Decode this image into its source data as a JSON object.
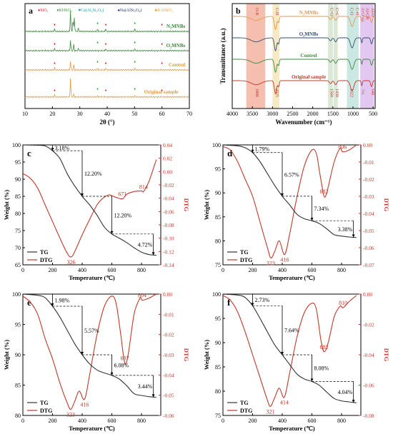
{
  "chart_data": [
    {
      "panel": "a",
      "type": "line",
      "xlabel": "2θ (°)",
      "ylabel": "",
      "xlim": [
        10,
        70
      ],
      "xticks": [
        10,
        20,
        30,
        40,
        50,
        60,
        70
      ],
      "legend": [
        {
          "symbol": "♦",
          "label": "SiO₂",
          "color": "#d62728"
        },
        {
          "symbol": "♦",
          "label": "KHSO₄",
          "color": "#2ca02c"
        },
        {
          "symbol": "♥",
          "label": "Ca(Al₂Si₂O₈)",
          "color": "#17a2b8"
        },
        {
          "symbol": "♠",
          "label": "Na(AlSi₃O₈)",
          "color": "#1f3b73"
        },
        {
          "symbol": "♣",
          "label": "KAlSiO₄",
          "color": "#e8a33d"
        }
      ],
      "series": [
        {
          "name": "N₂MNBs",
          "color": "#3c8a3c",
          "baseline": 4,
          "peaks": [
            [
              20.8,
              0.25
            ],
            [
              26.6,
              2.4
            ],
            [
              27.5,
              1.4
            ],
            [
              28.0,
              1.6
            ],
            [
              29.5,
              0.4
            ],
            [
              36.5,
              0.25
            ],
            [
              39.5,
              0.35
            ],
            [
              50.1,
              0.3
            ]
          ]
        },
        {
          "name": "O₂MNBs",
          "color": "#3c8a3c",
          "baseline": 3,
          "peaks": [
            [
              20.8,
              0.2
            ],
            [
              26.6,
              1.2
            ],
            [
              27.8,
              0.7
            ],
            [
              29.5,
              0.25
            ],
            [
              39.5,
              0.25
            ],
            [
              50.1,
              0.2
            ]
          ]
        },
        {
          "name": "Control",
          "color": "#e39a48",
          "baseline": 2,
          "peaks": [
            [
              20.8,
              0.2
            ],
            [
              26.6,
              1.0
            ],
            [
              27.8,
              0.6
            ],
            [
              36.5,
              0.2
            ],
            [
              39.5,
              0.25
            ],
            [
              50.1,
              0.2
            ]
          ]
        },
        {
          "name": "Original sample",
          "color": "#e39a48",
          "baseline": 0.6,
          "peaks": [
            [
              20.8,
              0.2
            ],
            [
              26.6,
              2.2
            ],
            [
              27.8,
              0.3
            ],
            [
              36.5,
              0.15
            ],
            [
              50.1,
              0.15
            ]
          ]
        }
      ]
    },
    {
      "panel": "b",
      "type": "line",
      "xlabel": "Wavenumber (cm⁻¹)",
      "ylabel": "Transmittance (a.u.)",
      "xlim": [
        4000,
        450
      ],
      "xticks": [
        4000,
        3500,
        3000,
        2500,
        2000,
        1500,
        1000,
        500
      ],
      "bands": [
        {
          "label": "O-H",
          "value": "3406",
          "from": 3650,
          "to": 3180,
          "color": "#f3a894"
        },
        {
          "label": "C-H",
          "value": "2925",
          "from": 3000,
          "to": 2830,
          "color": "#f4e2b0"
        },
        {
          "label": "C=O",
          "value": "1560",
          "from": 1620,
          "to": 1500,
          "color": "#cfe0c8"
        },
        {
          "label": "C=C",
          "value": "1430",
          "from": 1480,
          "to": 1380,
          "color": "#cfe0c8"
        },
        {
          "label": "C-O",
          "value": "1022",
          "from": 1150,
          "to": 980,
          "color": "#b9dfd8"
        },
        {
          "label": "C-H",
          "value": "",
          "from": 980,
          "to": 860,
          "color": "#b9dfd8"
        },
        {
          "label": "Si-O-Al",
          "value": "781",
          "from": 820,
          "to": 740,
          "color": "#d8b4ec"
        },
        {
          "label": "Al-OH",
          "value": "",
          "from": 740,
          "to": 600,
          "color": "#d8b4ec"
        },
        {
          "label": "Al-O",
          "value": "540",
          "from": 600,
          "to": 480,
          "color": "#d8b4ec"
        }
      ],
      "series": [
        {
          "name": "N₂MNBs",
          "color": "#e39a48",
          "baseline": 4
        },
        {
          "name": "O₂MNBs",
          "color": "#2f4f6f",
          "baseline": 3
        },
        {
          "name": "Control",
          "color": "#3c8a3c",
          "baseline": 2
        },
        {
          "name": "Original sample",
          "color": "#c0392b",
          "baseline": 1
        }
      ]
    },
    {
      "panel": "c",
      "type": "line",
      "xlabel": "Temperature (℃)",
      "ylabel": "Weight (%)",
      "y2label": "DTG",
      "xlim": [
        0,
        930
      ],
      "xticks": [
        0,
        200,
        400,
        600,
        800
      ],
      "ylim": [
        65,
        100
      ],
      "yticks": [
        65,
        70,
        75,
        80,
        85,
        90,
        95,
        100
      ],
      "y2lim": [
        -0.14,
        0.04
      ],
      "y2ticks": [
        0.04,
        0.02,
        0.0,
        -0.02,
        -0.04,
        -0.06,
        -0.08,
        -0.1,
        -0.12,
        -0.14
      ],
      "tg": [
        [
          0,
          100
        ],
        [
          100,
          99.9
        ],
        [
          150,
          99.7
        ],
        [
          200,
          98.3
        ],
        [
          250,
          96.0
        ],
        [
          300,
          91.5
        ],
        [
          350,
          88.0
        ],
        [
          400,
          85.0
        ],
        [
          450,
          82.5
        ],
        [
          500,
          79.5
        ],
        [
          550,
          76.0
        ],
        [
          600,
          74.0
        ],
        [
          650,
          72.8
        ],
        [
          700,
          71.5
        ],
        [
          750,
          70.0
        ],
        [
          800,
          68.7
        ],
        [
          850,
          68.0
        ],
        [
          900,
          67.8
        ]
      ],
      "dtg": [
        [
          0,
          -0.003
        ],
        [
          50,
          -0.01
        ],
        [
          100,
          -0.025
        ],
        [
          150,
          -0.05
        ],
        [
          200,
          -0.075
        ],
        [
          250,
          -0.1
        ],
        [
          300,
          -0.123
        ],
        [
          326,
          -0.128
        ],
        [
          350,
          -0.12
        ],
        [
          400,
          -0.095
        ],
        [
          450,
          -0.072
        ],
        [
          500,
          -0.05
        ],
        [
          540,
          -0.04
        ],
        [
          580,
          -0.035
        ],
        [
          620,
          -0.038
        ],
        [
          671,
          -0.041
        ],
        [
          700,
          -0.034
        ],
        [
          750,
          -0.03
        ],
        [
          800,
          -0.029
        ],
        [
          814,
          -0.03
        ],
        [
          850,
          -0.015
        ],
        [
          900,
          0.018
        ]
      ],
      "steps": [
        "3.18%",
        "12.20%",
        "12.20%",
        "4.72%"
      ],
      "peaks": [
        "326",
        "671",
        "814"
      ],
      "legend": [
        "TG",
        "DTG"
      ]
    },
    {
      "panel": "d",
      "type": "line",
      "xlabel": "Temperature (℃)",
      "ylabel": "Weight (%)",
      "y2label": "DTG",
      "xlim": [
        0,
        930
      ],
      "xticks": [
        0,
        200,
        400,
        600,
        800
      ],
      "ylim": [
        75,
        100
      ],
      "yticks": [
        75,
        80,
        85,
        90,
        95,
        100
      ],
      "y2lim": [
        -0.07,
        0.0
      ],
      "y2ticks": [
        0.0,
        -0.01,
        -0.02,
        -0.03,
        -0.04,
        -0.05,
        -0.06,
        -0.07
      ],
      "tg": [
        [
          0,
          100
        ],
        [
          100,
          99.8
        ],
        [
          150,
          99.4
        ],
        [
          200,
          98.4
        ],
        [
          250,
          96.5
        ],
        [
          300,
          94.0
        ],
        [
          350,
          91.5
        ],
        [
          400,
          89.3
        ],
        [
          450,
          87.5
        ],
        [
          500,
          85.5
        ],
        [
          550,
          84.6
        ],
        [
          600,
          84.2
        ],
        [
          650,
          83.6
        ],
        [
          700,
          82.5
        ],
        [
          750,
          81.3
        ],
        [
          800,
          81.0
        ],
        [
          850,
          80.8
        ],
        [
          900,
          80.7
        ]
      ],
      "dtg": [
        [
          0,
          -0.001
        ],
        [
          50,
          -0.003
        ],
        [
          100,
          -0.01
        ],
        [
          150,
          -0.02
        ],
        [
          200,
          -0.03
        ],
        [
          250,
          -0.045
        ],
        [
          300,
          -0.06
        ],
        [
          323,
          -0.066
        ],
        [
          350,
          -0.062
        ],
        [
          380,
          -0.056
        ],
        [
          416,
          -0.064
        ],
        [
          450,
          -0.052
        ],
        [
          500,
          -0.03
        ],
        [
          550,
          -0.012
        ],
        [
          600,
          -0.003
        ],
        [
          630,
          -0.005
        ],
        [
          650,
          -0.015
        ],
        [
          670,
          -0.025
        ],
        [
          682,
          -0.03
        ],
        [
          700,
          -0.028
        ],
        [
          750,
          -0.01
        ],
        [
          790,
          -0.002
        ],
        [
          806,
          -0.004
        ],
        [
          850,
          -0.003
        ],
        [
          900,
          0.0
        ]
      ],
      "steps": [
        "1.79%",
        "6.57%",
        "7.34%",
        "3.38%"
      ],
      "peaks": [
        "323",
        "416",
        "682",
        "806"
      ],
      "legend": [
        "TG",
        "DTG"
      ]
    },
    {
      "panel": "e",
      "type": "line",
      "xlabel": "Temperature (℃)",
      "ylabel": "Weight (%)",
      "y2label": "DTG",
      "xlim": [
        0,
        930
      ],
      "xticks": [
        0,
        200,
        400,
        600,
        800
      ],
      "ylim": [
        80,
        100
      ],
      "yticks": [
        80,
        85,
        90,
        95,
        100
      ],
      "y2lim": [
        -0.06,
        0.0
      ],
      "y2ticks": [
        0.0,
        -0.01,
        -0.02,
        -0.03,
        -0.04,
        -0.05,
        -0.06
      ],
      "tg": [
        [
          0,
          100
        ],
        [
          100,
          99.8
        ],
        [
          150,
          99.4
        ],
        [
          200,
          98.0
        ],
        [
          250,
          96.2
        ],
        [
          300,
          94.0
        ],
        [
          350,
          91.8
        ],
        [
          400,
          90.0
        ],
        [
          450,
          88.5
        ],
        [
          500,
          87.5
        ],
        [
          550,
          87.0
        ],
        [
          600,
          86.6
        ],
        [
          650,
          86.0
        ],
        [
          700,
          84.9
        ],
        [
          750,
          83.6
        ],
        [
          800,
          83.3
        ],
        [
          850,
          83.1
        ],
        [
          900,
          83.0
        ]
      ],
      "dtg": [
        [
          0,
          -0.001
        ],
        [
          50,
          -0.004
        ],
        [
          100,
          -0.01
        ],
        [
          150,
          -0.022
        ],
        [
          200,
          -0.032
        ],
        [
          250,
          -0.044
        ],
        [
          300,
          -0.054
        ],
        [
          323,
          -0.057
        ],
        [
          350,
          -0.053
        ],
        [
          380,
          -0.048
        ],
        [
          416,
          -0.052
        ],
        [
          450,
          -0.04
        ],
        [
          500,
          -0.02
        ],
        [
          550,
          -0.006
        ],
        [
          600,
          -0.001
        ],
        [
          630,
          -0.005
        ],
        [
          660,
          -0.02
        ],
        [
          687,
          -0.034
        ],
        [
          710,
          -0.03
        ],
        [
          750,
          -0.01
        ],
        [
          790,
          -0.002
        ],
        [
          804,
          -0.003
        ],
        [
          850,
          -0.002
        ],
        [
          900,
          0.0
        ]
      ],
      "steps": [
        "1.98%",
        "5.57%",
        "6.08%",
        "3.44%"
      ],
      "peaks": [
        "323",
        "416",
        "687",
        "804"
      ],
      "legend": [
        "TG",
        "DTG"
      ]
    },
    {
      "panel": "f",
      "type": "line",
      "xlabel": "Temperature (℃)",
      "ylabel": "Weight (%)",
      "y2label": "DTG",
      "xlim": [
        0,
        930
      ],
      "xticks": [
        0,
        200,
        400,
        600,
        800
      ],
      "ylim": [
        75,
        100
      ],
      "yticks": [
        75,
        80,
        85,
        90,
        95,
        100
      ],
      "y2lim": [
        -0.08,
        0.0
      ],
      "y2ticks": [
        0.0,
        -0.02,
        -0.04,
        -0.06,
        -0.08
      ],
      "tg": [
        [
          0,
          100
        ],
        [
          100,
          99.8
        ],
        [
          150,
          99.3
        ],
        [
          200,
          97.6
        ],
        [
          250,
          95.0
        ],
        [
          300,
          92.2
        ],
        [
          350,
          89.5
        ],
        [
          400,
          87.5
        ],
        [
          450,
          85.5
        ],
        [
          500,
          83.5
        ],
        [
          550,
          82.5
        ],
        [
          600,
          82.0
        ],
        [
          650,
          81.2
        ],
        [
          700,
          79.8
        ],
        [
          750,
          78.5
        ],
        [
          800,
          78.0
        ],
        [
          850,
          77.8
        ],
        [
          900,
          77.6
        ]
      ],
      "dtg": [
        [
          0,
          -0.001
        ],
        [
          50,
          -0.004
        ],
        [
          100,
          -0.012
        ],
        [
          150,
          -0.025
        ],
        [
          200,
          -0.04
        ],
        [
          250,
          -0.055
        ],
        [
          300,
          -0.07
        ],
        [
          321,
          -0.074
        ],
        [
          350,
          -0.068
        ],
        [
          380,
          -0.062
        ],
        [
          414,
          -0.068
        ],
        [
          450,
          -0.052
        ],
        [
          500,
          -0.028
        ],
        [
          550,
          -0.012
        ],
        [
          600,
          -0.006
        ],
        [
          630,
          -0.01
        ],
        [
          660,
          -0.03
        ],
        [
          682,
          -0.038
        ],
        [
          710,
          -0.032
        ],
        [
          750,
          -0.015
        ],
        [
          790,
          -0.008
        ],
        [
          810,
          -0.009
        ],
        [
          850,
          -0.005
        ],
        [
          900,
          -0.001
        ]
      ],
      "steps": [
        "2.73%",
        "7.64%",
        "8.08%",
        "4.04%"
      ],
      "peaks": [
        "321",
        "414",
        "682",
        "810"
      ],
      "legend": [
        "TG",
        "DTG"
      ]
    }
  ]
}
